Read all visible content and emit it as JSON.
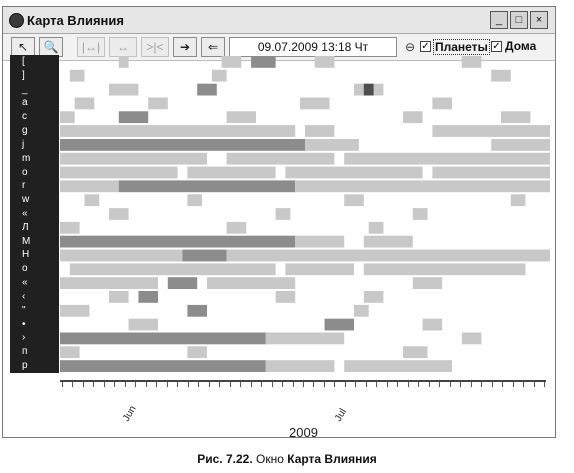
{
  "window": {
    "title": "Карта Влияния",
    "controls": [
      "_",
      "□",
      "×"
    ]
  },
  "toolbar": {
    "tools": [
      {
        "name": "pointer-tool",
        "glyph": "↖"
      },
      {
        "name": "zoom-tool",
        "glyph": "🔍"
      },
      {
        "name": "range-expand-tool",
        "glyph": "|↔|"
      },
      {
        "name": "range-both-tool",
        "glyph": "↔"
      },
      {
        "name": "range-shrink-tool",
        "glyph": ">|<"
      },
      {
        "name": "forward-tool",
        "glyph": "➔"
      },
      {
        "name": "back-tool",
        "glyph": "⇐"
      }
    ],
    "datetime": "09.07.2009  13:18 Чт",
    "planets_label": "Планеты",
    "houses_label": "Дома"
  },
  "rows": [
    {
      "label": "[",
      "bands": [
        {
          "from": 0.12,
          "to": 0.14,
          "tone": "light"
        },
        {
          "from": 0.33,
          "to": 0.37,
          "tone": "light"
        },
        {
          "from": 0.39,
          "to": 0.44,
          "tone": "mid"
        },
        {
          "from": 0.52,
          "to": 0.56,
          "tone": "light"
        },
        {
          "from": 0.82,
          "to": 0.86,
          "tone": "light"
        }
      ]
    },
    {
      "label": "]",
      "bands": [
        {
          "from": 0.02,
          "to": 0.05,
          "tone": "light"
        },
        {
          "from": 0.31,
          "to": 0.34,
          "tone": "light"
        },
        {
          "from": 0.88,
          "to": 0.92,
          "tone": "light"
        }
      ]
    },
    {
      "label": "_",
      "bands": [
        {
          "from": 0.1,
          "to": 0.16,
          "tone": "light"
        },
        {
          "from": 0.28,
          "to": 0.32,
          "tone": "mid"
        },
        {
          "from": 0.6,
          "to": 0.66,
          "tone": "light"
        },
        {
          "from": 0.62,
          "to": 0.64,
          "tone": "dark"
        }
      ]
    },
    {
      "label": "a",
      "bands": [
        {
          "from": 0.03,
          "to": 0.07,
          "tone": "light"
        },
        {
          "from": 0.18,
          "to": 0.22,
          "tone": "light"
        },
        {
          "from": 0.49,
          "to": 0.55,
          "tone": "light"
        },
        {
          "from": 0.76,
          "to": 0.8,
          "tone": "light"
        }
      ]
    },
    {
      "label": "c",
      "bands": [
        {
          "from": 0.0,
          "to": 0.03,
          "tone": "light"
        },
        {
          "from": 0.12,
          "to": 0.18,
          "tone": "mid"
        },
        {
          "from": 0.34,
          "to": 0.4,
          "tone": "light"
        },
        {
          "from": 0.7,
          "to": 0.74,
          "tone": "light"
        },
        {
          "from": 0.9,
          "to": 0.96,
          "tone": "light"
        }
      ]
    },
    {
      "label": "g",
      "bands": [
        {
          "from": 0.0,
          "to": 0.48,
          "tone": "light"
        },
        {
          "from": 0.5,
          "to": 0.56,
          "tone": "light"
        },
        {
          "from": 0.76,
          "to": 1.0,
          "tone": "light"
        }
      ]
    },
    {
      "label": "j",
      "bands": [
        {
          "from": 0.0,
          "to": 0.5,
          "tone": "mid"
        },
        {
          "from": 0.5,
          "to": 0.61,
          "tone": "light"
        },
        {
          "from": 0.88,
          "to": 1.0,
          "tone": "light"
        }
      ]
    },
    {
      "label": "m",
      "bands": [
        {
          "from": 0.0,
          "to": 0.3,
          "tone": "light"
        },
        {
          "from": 0.34,
          "to": 0.56,
          "tone": "light"
        },
        {
          "from": 0.58,
          "to": 1.0,
          "tone": "light"
        }
      ]
    },
    {
      "label": "o",
      "bands": [
        {
          "from": 0.0,
          "to": 0.24,
          "tone": "light"
        },
        {
          "from": 0.26,
          "to": 0.44,
          "tone": "light"
        },
        {
          "from": 0.46,
          "to": 0.74,
          "tone": "light"
        },
        {
          "from": 0.76,
          "to": 1.0,
          "tone": "light"
        }
      ]
    },
    {
      "label": "r",
      "bands": [
        {
          "from": 0.0,
          "to": 0.12,
          "tone": "light"
        },
        {
          "from": 0.12,
          "to": 0.48,
          "tone": "mid"
        },
        {
          "from": 0.48,
          "to": 1.0,
          "tone": "light"
        }
      ]
    },
    {
      "label": "w",
      "bands": [
        {
          "from": 0.05,
          "to": 0.08,
          "tone": "light"
        },
        {
          "from": 0.26,
          "to": 0.29,
          "tone": "light"
        },
        {
          "from": 0.58,
          "to": 0.62,
          "tone": "light"
        },
        {
          "from": 0.92,
          "to": 0.95,
          "tone": "light"
        }
      ]
    },
    {
      "label": "«",
      "bands": [
        {
          "from": 0.1,
          "to": 0.14,
          "tone": "light"
        },
        {
          "from": 0.44,
          "to": 0.47,
          "tone": "light"
        },
        {
          "from": 0.72,
          "to": 0.75,
          "tone": "light"
        }
      ]
    },
    {
      "label": "Л",
      "bands": [
        {
          "from": 0.0,
          "to": 0.04,
          "tone": "light"
        },
        {
          "from": 0.34,
          "to": 0.38,
          "tone": "light"
        },
        {
          "from": 0.63,
          "to": 0.66,
          "tone": "light"
        }
      ]
    },
    {
      "label": "М",
      "bands": [
        {
          "from": 0.0,
          "to": 0.48,
          "tone": "mid"
        },
        {
          "from": 0.48,
          "to": 0.58,
          "tone": "light"
        },
        {
          "from": 0.62,
          "to": 0.72,
          "tone": "light"
        }
      ]
    },
    {
      "label": "Н",
      "bands": [
        {
          "from": 0.0,
          "to": 0.25,
          "tone": "light"
        },
        {
          "from": 0.25,
          "to": 0.34,
          "tone": "mid"
        },
        {
          "from": 0.34,
          "to": 1.0,
          "tone": "light"
        }
      ]
    },
    {
      "label": "о",
      "bands": [
        {
          "from": 0.02,
          "to": 0.44,
          "tone": "light"
        },
        {
          "from": 0.46,
          "to": 0.6,
          "tone": "light"
        },
        {
          "from": 0.62,
          "to": 0.95,
          "tone": "light"
        }
      ]
    },
    {
      "label": "«",
      "bands": [
        {
          "from": 0.0,
          "to": 0.2,
          "tone": "light"
        },
        {
          "from": 0.22,
          "to": 0.28,
          "tone": "mid"
        },
        {
          "from": 0.3,
          "to": 0.48,
          "tone": "light"
        },
        {
          "from": 0.72,
          "to": 0.78,
          "tone": "light"
        }
      ]
    },
    {
      "label": "‹",
      "bands": [
        {
          "from": 0.1,
          "to": 0.14,
          "tone": "light"
        },
        {
          "from": 0.16,
          "to": 0.2,
          "tone": "mid"
        },
        {
          "from": 0.44,
          "to": 0.48,
          "tone": "light"
        },
        {
          "from": 0.62,
          "to": 0.66,
          "tone": "light"
        }
      ]
    },
    {
      "label": "\"",
      "bands": [
        {
          "from": 0.0,
          "to": 0.06,
          "tone": "light"
        },
        {
          "from": 0.26,
          "to": 0.3,
          "tone": "mid"
        },
        {
          "from": 0.6,
          "to": 0.63,
          "tone": "light"
        }
      ]
    },
    {
      "label": "•",
      "bands": [
        {
          "from": 0.14,
          "to": 0.2,
          "tone": "light"
        },
        {
          "from": 0.54,
          "to": 0.6,
          "tone": "mid"
        },
        {
          "from": 0.74,
          "to": 0.78,
          "tone": "light"
        }
      ]
    },
    {
      "label": "›",
      "bands": [
        {
          "from": 0.0,
          "to": 0.42,
          "tone": "mid"
        },
        {
          "from": 0.42,
          "to": 0.58,
          "tone": "light"
        },
        {
          "from": 0.82,
          "to": 0.86,
          "tone": "light"
        }
      ]
    },
    {
      "label": "п",
      "bands": [
        {
          "from": 0.0,
          "to": 0.04,
          "tone": "light"
        },
        {
          "from": 0.26,
          "to": 0.3,
          "tone": "light"
        },
        {
          "from": 0.7,
          "to": 0.75,
          "tone": "light"
        }
      ]
    },
    {
      "label": "р",
      "bands": [
        {
          "from": 0.0,
          "to": 0.42,
          "tone": "mid"
        },
        {
          "from": 0.42,
          "to": 0.56,
          "tone": "light"
        },
        {
          "from": 0.58,
          "to": 0.8,
          "tone": "light"
        }
      ]
    }
  ],
  "axis": {
    "months": [
      {
        "label": "Jun",
        "pos": 0.13
      },
      {
        "label": "Jul",
        "pos": 0.57
      }
    ],
    "ticks": 46,
    "year": "2009"
  },
  "caption": {
    "bold_part": "Рис. 7.22.",
    "normal_part": " Окно ",
    "bold_tail": "Карта Влияния"
  },
  "colors": {
    "light": "#c8c8c8",
    "mid": "#8c8c8c",
    "dark": "#4e4e4e",
    "labels_bg": "#202020"
  }
}
